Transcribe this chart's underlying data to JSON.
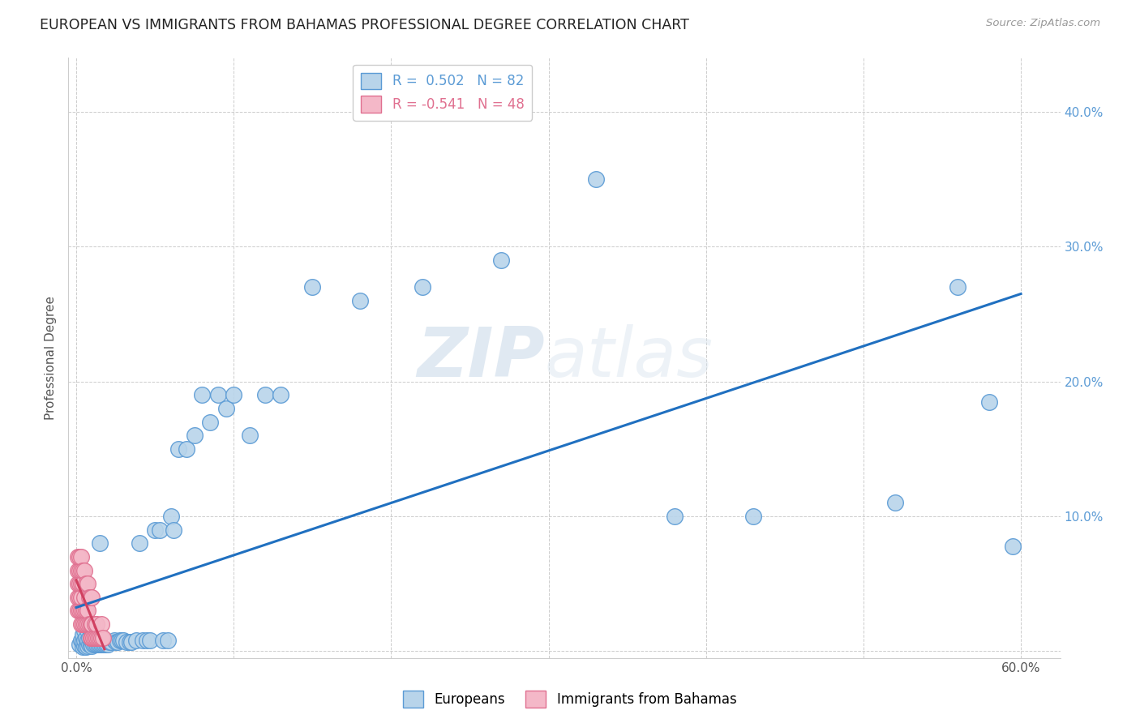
{
  "title": "EUROPEAN VS IMMIGRANTS FROM BAHAMAS PROFESSIONAL DEGREE CORRELATION CHART",
  "source": "Source: ZipAtlas.com",
  "ylabel": "Professional Degree",
  "xlim": [
    -0.005,
    0.625
  ],
  "ylim": [
    -0.005,
    0.44
  ],
  "xticks": [
    0.0,
    0.1,
    0.2,
    0.3,
    0.4,
    0.5,
    0.6
  ],
  "yticks": [
    0.0,
    0.1,
    0.2,
    0.3,
    0.4
  ],
  "xticklabels": [
    "0.0%",
    "",
    "",
    "",
    "",
    "",
    "60.0%"
  ],
  "yticklabels": [
    "",
    "10.0%",
    "20.0%",
    "30.0%",
    "40.0%"
  ],
  "background_color": "#ffffff",
  "grid_color": "#cccccc",
  "title_color": "#222222",
  "title_fontsize": 12.5,
  "european_color": "#b8d4ea",
  "european_edge_color": "#5b9bd5",
  "bahamas_color": "#f4b8c8",
  "bahamas_edge_color": "#e07090",
  "european_R": 0.502,
  "european_N": 82,
  "bahamas_R": -0.541,
  "bahamas_N": 48,
  "european_line_color": "#2070c0",
  "bahamas_line_color": "#d04060",
  "watermark_zip": "ZIP",
  "watermark_atlas": "atlas",
  "european_x": [
    0.002,
    0.003,
    0.004,
    0.004,
    0.004,
    0.005,
    0.005,
    0.005,
    0.006,
    0.006,
    0.007,
    0.007,
    0.007,
    0.008,
    0.008,
    0.008,
    0.009,
    0.009,
    0.01,
    0.01,
    0.01,
    0.01,
    0.011,
    0.011,
    0.012,
    0.012,
    0.013,
    0.013,
    0.014,
    0.014,
    0.015,
    0.015,
    0.016,
    0.016,
    0.017,
    0.018,
    0.019,
    0.02,
    0.021,
    0.022,
    0.024,
    0.025,
    0.026,
    0.028,
    0.029,
    0.03,
    0.032,
    0.034,
    0.035,
    0.038,
    0.04,
    0.042,
    0.045,
    0.047,
    0.05,
    0.053,
    0.055,
    0.058,
    0.06,
    0.062,
    0.065,
    0.07,
    0.075,
    0.08,
    0.085,
    0.09,
    0.095,
    0.1,
    0.11,
    0.12,
    0.13,
    0.15,
    0.18,
    0.22,
    0.27,
    0.33,
    0.38,
    0.43,
    0.52,
    0.56,
    0.58,
    0.595
  ],
  "european_y": [
    0.005,
    0.008,
    0.003,
    0.007,
    0.012,
    0.004,
    0.008,
    0.015,
    0.003,
    0.01,
    0.004,
    0.008,
    0.015,
    0.005,
    0.01,
    0.02,
    0.005,
    0.015,
    0.004,
    0.008,
    0.013,
    0.02,
    0.005,
    0.012,
    0.005,
    0.01,
    0.005,
    0.012,
    0.005,
    0.01,
    0.005,
    0.08,
    0.005,
    0.01,
    0.005,
    0.005,
    0.005,
    0.005,
    0.007,
    0.007,
    0.008,
    0.007,
    0.007,
    0.008,
    0.008,
    0.008,
    0.007,
    0.007,
    0.007,
    0.008,
    0.08,
    0.008,
    0.008,
    0.008,
    0.09,
    0.09,
    0.008,
    0.008,
    0.1,
    0.09,
    0.15,
    0.15,
    0.16,
    0.19,
    0.17,
    0.19,
    0.18,
    0.19,
    0.16,
    0.19,
    0.19,
    0.27,
    0.26,
    0.27,
    0.29,
    0.35,
    0.1,
    0.1,
    0.11,
    0.27,
    0.185,
    0.078
  ],
  "bahamas_x": [
    0.001,
    0.001,
    0.001,
    0.001,
    0.001,
    0.002,
    0.002,
    0.002,
    0.002,
    0.002,
    0.003,
    0.003,
    0.003,
    0.003,
    0.003,
    0.003,
    0.004,
    0.004,
    0.004,
    0.004,
    0.005,
    0.005,
    0.005,
    0.005,
    0.006,
    0.006,
    0.006,
    0.007,
    0.007,
    0.007,
    0.008,
    0.008,
    0.009,
    0.009,
    0.009,
    0.01,
    0.01,
    0.01,
    0.011,
    0.012,
    0.012,
    0.013,
    0.013,
    0.014,
    0.015,
    0.016,
    0.016,
    0.017
  ],
  "bahamas_y": [
    0.03,
    0.04,
    0.05,
    0.06,
    0.07,
    0.03,
    0.04,
    0.05,
    0.06,
    0.07,
    0.02,
    0.03,
    0.04,
    0.05,
    0.06,
    0.07,
    0.02,
    0.03,
    0.05,
    0.06,
    0.02,
    0.03,
    0.04,
    0.06,
    0.02,
    0.03,
    0.05,
    0.02,
    0.03,
    0.05,
    0.02,
    0.04,
    0.01,
    0.02,
    0.04,
    0.01,
    0.02,
    0.04,
    0.01,
    0.01,
    0.02,
    0.01,
    0.02,
    0.01,
    0.01,
    0.01,
    0.02,
    0.01
  ]
}
